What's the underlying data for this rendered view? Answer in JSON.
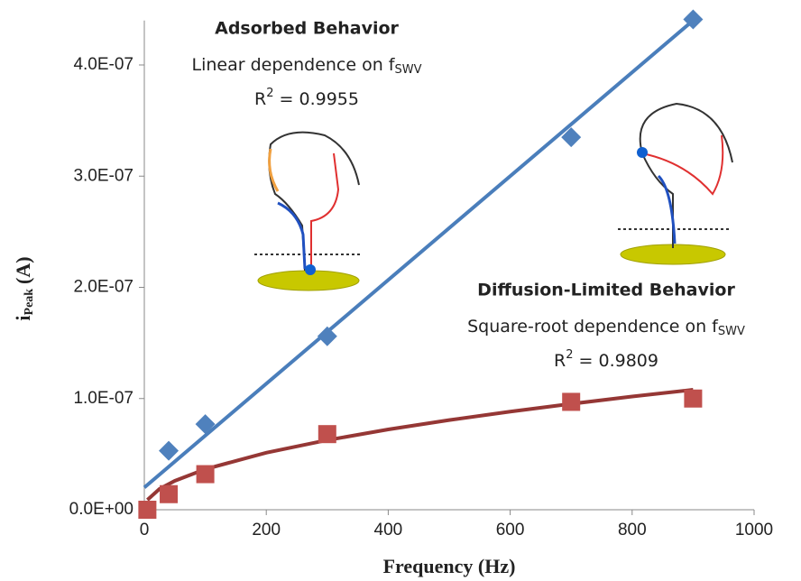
{
  "chart_data": {
    "type": "scatter",
    "x_label": "Frequency (Hz)",
    "y_label": {
      "main": "i",
      "sub": "Peak",
      "unit": "(A)"
    },
    "xlim": [
      0,
      1000
    ],
    "xticks": [
      0,
      200,
      400,
      600,
      800,
      1000
    ],
    "ylim": [
      0,
      4.4e-07
    ],
    "yticks": [
      {
        "value": 0,
        "label": "0.0E+00"
      },
      {
        "value": 1e-07,
        "label": "1.0E-07"
      },
      {
        "value": 2e-07,
        "label": "2.0E-07"
      },
      {
        "value": 3e-07,
        "label": "3.0E-07"
      },
      {
        "value": 4e-07,
        "label": "4.0E-07"
      }
    ],
    "series": [
      {
        "marker": "diamond",
        "color": "#4f81bd",
        "x": [
          40,
          100,
          300,
          700,
          900
        ],
        "values": [
          5.3e-08,
          7.7e-08,
          1.56e-07,
          3.35e-07,
          4.41e-07
        ]
      },
      {
        "marker": "square",
        "color": "#c0504d",
        "x": [
          5,
          40,
          100,
          300,
          700,
          900
        ],
        "values": [
          0,
          1.4e-08,
          3.2e-08,
          6.8e-08,
          9.7e-08,
          1e-07
        ]
      }
    ],
    "fits": [
      {
        "color": "#4a7ebb",
        "x": [
          0,
          900
        ],
        "values": [
          2e-08,
          4.4e-07
        ]
      },
      {
        "color": "#953735",
        "x": [
          5,
          25,
          50,
          100,
          200,
          300,
          400,
          500,
          600,
          700,
          800,
          900
        ],
        "values": [
          8.8e-09,
          1.87e-08,
          2.6e-08,
          3.65e-08,
          5.13e-08,
          6.26e-08,
          7.22e-08,
          8.06e-08,
          8.82e-08,
          9.52e-08,
          1.018e-07,
          1.079e-07
        ]
      }
    ],
    "annotations": [
      {
        "title": "Adsorbed Behavior",
        "text": "Linear dependence on f",
        "sub": "SWV",
        "r": "R",
        "sup": "2",
        "stat": " = 0.9955"
      },
      {
        "title": "Diffusion-Limited Behavior",
        "text": "Square-root dependence on f",
        "sub": "SWV",
        "r": "R",
        "sup": "2",
        "stat": " = 0.9809"
      }
    ]
  }
}
